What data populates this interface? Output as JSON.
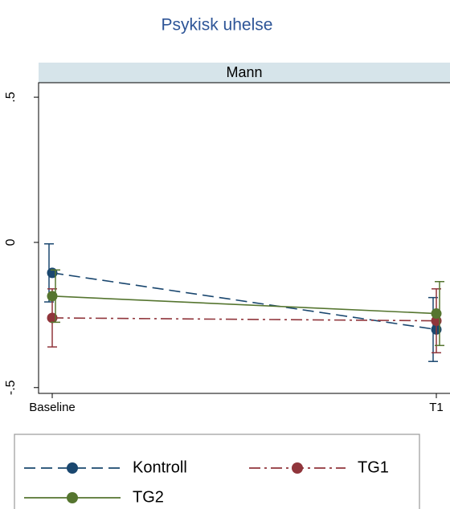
{
  "chart_data": {
    "type": "line",
    "title": "Psykisk uhelse",
    "panel_title": "Mann",
    "categories": [
      "Baseline",
      "T1"
    ],
    "series": [
      {
        "name": "Kontroll",
        "color": "#1a476f",
        "dash": "dash",
        "values": [
          -0.105,
          -0.3
        ],
        "errors": [
          0.1,
          0.11
        ]
      },
      {
        "name": "TG1",
        "color": "#90353b",
        "dash": "dashdot",
        "values": [
          -0.26,
          -0.27
        ],
        "errors": [
          0.1,
          0.11
        ]
      },
      {
        "name": "TG2",
        "color": "#55752f",
        "dash": "solid",
        "values": [
          -0.185,
          -0.245
        ],
        "errors": [
          0.09,
          0.11
        ]
      }
    ],
    "ylim": [
      -0.52,
      0.55
    ],
    "yticks": [
      {
        "value": 0.5,
        "label": ".5"
      },
      0,
      {
        "value": -0.5,
        "label": "-.5"
      }
    ],
    "grid": false
  }
}
